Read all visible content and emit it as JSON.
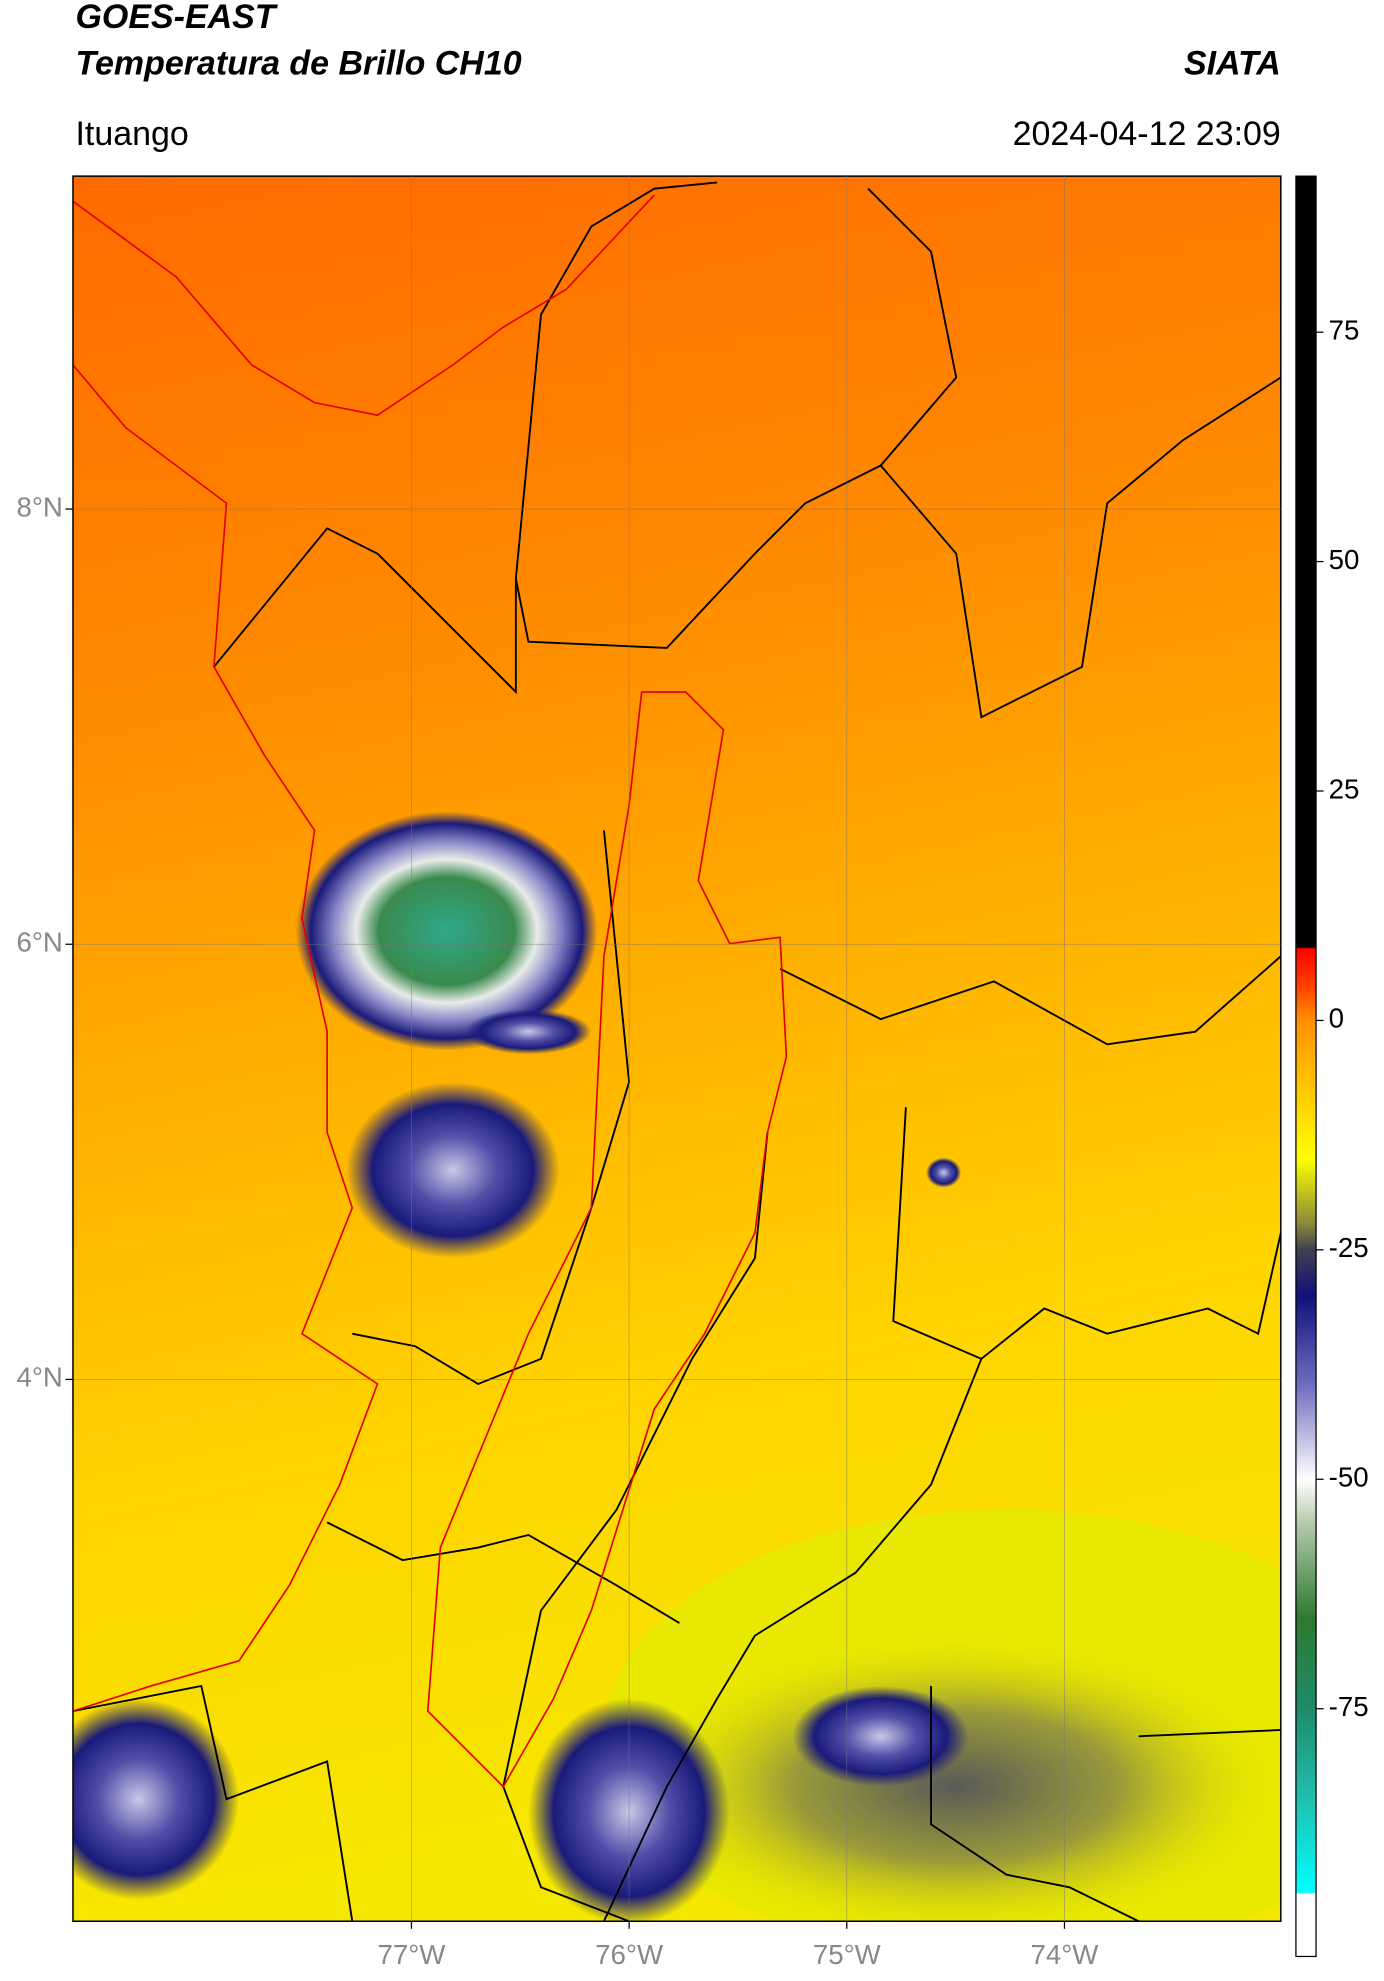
{
  "header": {
    "title": "GOES-EAST",
    "subtitle": "Temperatura de Brillo CH10",
    "source": "SIATA",
    "location": "Ituango",
    "datetime": "2024-04-12 23:09"
  },
  "map": {
    "xlim": [
      -78.555,
      -73.006
    ],
    "ylim": [
      1.51,
      9.53
    ],
    "xticks": [
      {
        "value": -77,
        "label": "77°W"
      },
      {
        "value": -76,
        "label": "76°W"
      },
      {
        "value": -75,
        "label": "75°W"
      },
      {
        "value": -74,
        "label": "74°W"
      }
    ],
    "yticks": [
      {
        "value": 8,
        "label": "8°N"
      },
      {
        "value": 6,
        "label": "6°N"
      },
      {
        "value": 4,
        "label": "4°N"
      }
    ],
    "grid": true
  },
  "colorbar": {
    "lim": [
      -102,
      92
    ],
    "ticks": [
      75,
      50,
      25,
      0,
      -25,
      -50,
      -75
    ]
  }
}
